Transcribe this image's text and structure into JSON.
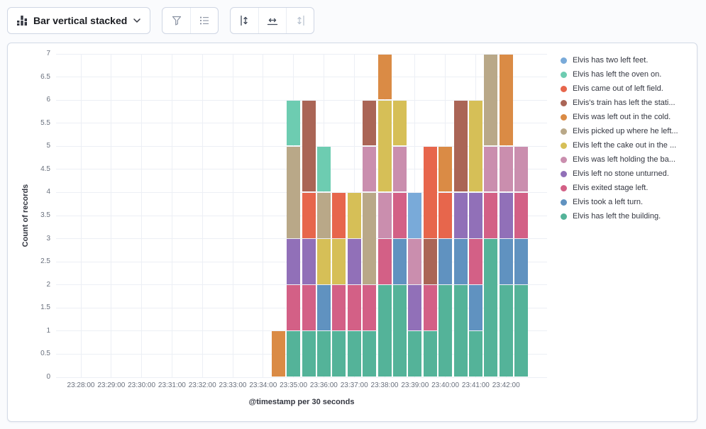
{
  "toolbar": {
    "chart_type_label": "Bar vertical stacked",
    "chart_type_icon": "stacked-bar-chart-icon",
    "display_group_icons": [
      "funnel-icon",
      "legend-list-icon"
    ],
    "axes_group_icons": [
      "left-axis-icon",
      "bottom-axis-icon",
      "right-axis-icon"
    ],
    "right_axis_disabled": true
  },
  "chart_data": {
    "type": "bar",
    "stacked": true,
    "orientation": "vertical",
    "xlabel": "@timestamp per 30 seconds",
    "ylabel": "Count of records",
    "ylim": [
      0,
      7
    ],
    "grid": true,
    "legend_position": "right",
    "y_tick_labels": [
      "0",
      "0.5",
      "1",
      "1.5",
      "2",
      "2.5",
      "3",
      "3.5",
      "4",
      "4.5",
      "5",
      "5.5",
      "6",
      "6.5",
      "7"
    ],
    "x_tick_labels": [
      "23:28:00",
      "23:29:00",
      "23:30:00",
      "23:31:00",
      "23:32:00",
      "23:33:00",
      "23:34:00",
      "23:35:00",
      "23:36:00",
      "23:37:00",
      "23:38:00",
      "23:39:00",
      "23:40:00",
      "23:41:00",
      "23:42:00"
    ],
    "series": [
      {
        "key": "feet",
        "label": "Elvis has two left feet.",
        "color": "#79AAD9"
      },
      {
        "key": "oven",
        "label": "Elvis has left the oven on.",
        "color": "#6DCCB1"
      },
      {
        "key": "field",
        "label": "Elvis came out of left field.",
        "color": "#E7664C"
      },
      {
        "key": "train",
        "label": "Elvis's train has left the stati...",
        "color": "#AA6556"
      },
      {
        "key": "cold",
        "label": "Elvis was left out in the cold.",
        "color": "#DA8B45"
      },
      {
        "key": "picked",
        "label": "Elvis picked up where he left...",
        "color": "#B9A888"
      },
      {
        "key": "cake",
        "label": "Elvis left the cake out in the ...",
        "color": "#D6BF57"
      },
      {
        "key": "holding",
        "label": "Elvis was left holding the ba...",
        "color": "#CA8EAE"
      },
      {
        "key": "stone",
        "label": "Elvis left no stone unturned.",
        "color": "#9170B8"
      },
      {
        "key": "exited",
        "label": "Elvis exited stage left.",
        "color": "#D36086"
      },
      {
        "key": "turn",
        "label": "Elvis took a left turn.",
        "color": "#6092C0"
      },
      {
        "key": "building",
        "label": "Elvis has left the building.",
        "color": "#54B399"
      }
    ],
    "stack_order_note": "segments listed bottom-to-top per bar",
    "bars": [
      {
        "time": "23:34:30",
        "segments": [
          {
            "key": "cold",
            "value": 1
          }
        ]
      },
      {
        "time": "23:35:00",
        "segments": [
          {
            "key": "building",
            "value": 1
          },
          {
            "key": "exited",
            "value": 1
          },
          {
            "key": "stone",
            "value": 1
          },
          {
            "key": "picked",
            "value": 2
          },
          {
            "key": "oven",
            "value": 1
          }
        ]
      },
      {
        "time": "23:35:30",
        "segments": [
          {
            "key": "building",
            "value": 1
          },
          {
            "key": "exited",
            "value": 1
          },
          {
            "key": "stone",
            "value": 1
          },
          {
            "key": "field",
            "value": 1
          },
          {
            "key": "train",
            "value": 2
          }
        ]
      },
      {
        "time": "23:36:00",
        "segments": [
          {
            "key": "building",
            "value": 1
          },
          {
            "key": "turn",
            "value": 1
          },
          {
            "key": "cake",
            "value": 1
          },
          {
            "key": "picked",
            "value": 1
          },
          {
            "key": "oven",
            "value": 1
          }
        ]
      },
      {
        "time": "23:36:30",
        "segments": [
          {
            "key": "building",
            "value": 1
          },
          {
            "key": "exited",
            "value": 1
          },
          {
            "key": "cake",
            "value": 1
          },
          {
            "key": "field",
            "value": 1
          }
        ]
      },
      {
        "time": "23:37:00",
        "segments": [
          {
            "key": "building",
            "value": 1
          },
          {
            "key": "exited",
            "value": 1
          },
          {
            "key": "stone",
            "value": 1
          },
          {
            "key": "cake",
            "value": 1
          }
        ]
      },
      {
        "time": "23:37:30",
        "segments": [
          {
            "key": "building",
            "value": 1
          },
          {
            "key": "exited",
            "value": 1
          },
          {
            "key": "picked",
            "value": 2
          },
          {
            "key": "holding",
            "value": 1
          },
          {
            "key": "train",
            "value": 1
          }
        ]
      },
      {
        "time": "23:38:00",
        "segments": [
          {
            "key": "building",
            "value": 2
          },
          {
            "key": "exited",
            "value": 1
          },
          {
            "key": "holding",
            "value": 1
          },
          {
            "key": "cake",
            "value": 2
          },
          {
            "key": "cold",
            "value": 1
          }
        ]
      },
      {
        "time": "23:38:30",
        "segments": [
          {
            "key": "building",
            "value": 2
          },
          {
            "key": "turn",
            "value": 1
          },
          {
            "key": "exited",
            "value": 1
          },
          {
            "key": "holding",
            "value": 1
          },
          {
            "key": "cake",
            "value": 1
          }
        ]
      },
      {
        "time": "23:39:00",
        "segments": [
          {
            "key": "building",
            "value": 1
          },
          {
            "key": "stone",
            "value": 1
          },
          {
            "key": "holding",
            "value": 1
          },
          {
            "key": "feet",
            "value": 1
          }
        ]
      },
      {
        "time": "23:39:30",
        "segments": [
          {
            "key": "building",
            "value": 1
          },
          {
            "key": "exited",
            "value": 1
          },
          {
            "key": "train",
            "value": 1
          },
          {
            "key": "field",
            "value": 2
          }
        ]
      },
      {
        "time": "23:40:00",
        "segments": [
          {
            "key": "building",
            "value": 2
          },
          {
            "key": "turn",
            "value": 1
          },
          {
            "key": "field",
            "value": 1
          },
          {
            "key": "cold",
            "value": 1
          }
        ]
      },
      {
        "time": "23:40:30",
        "segments": [
          {
            "key": "building",
            "value": 2
          },
          {
            "key": "turn",
            "value": 1
          },
          {
            "key": "stone",
            "value": 1
          },
          {
            "key": "train",
            "value": 2
          }
        ]
      },
      {
        "time": "23:41:00",
        "segments": [
          {
            "key": "building",
            "value": 1
          },
          {
            "key": "turn",
            "value": 1
          },
          {
            "key": "exited",
            "value": 1
          },
          {
            "key": "stone",
            "value": 1
          },
          {
            "key": "cake",
            "value": 2
          }
        ]
      },
      {
        "time": "23:41:30",
        "segments": [
          {
            "key": "building",
            "value": 3
          },
          {
            "key": "exited",
            "value": 1
          },
          {
            "key": "holding",
            "value": 1
          },
          {
            "key": "picked",
            "value": 2
          }
        ]
      },
      {
        "time": "23:42:00",
        "segments": [
          {
            "key": "building",
            "value": 2
          },
          {
            "key": "turn",
            "value": 1
          },
          {
            "key": "stone",
            "value": 1
          },
          {
            "key": "holding",
            "value": 1
          },
          {
            "key": "cold",
            "value": 2
          }
        ]
      },
      {
        "time": "23:42:30",
        "segments": [
          {
            "key": "building",
            "value": 2
          },
          {
            "key": "turn",
            "value": 1
          },
          {
            "key": "exited",
            "value": 1
          },
          {
            "key": "holding",
            "value": 1
          }
        ]
      }
    ]
  }
}
